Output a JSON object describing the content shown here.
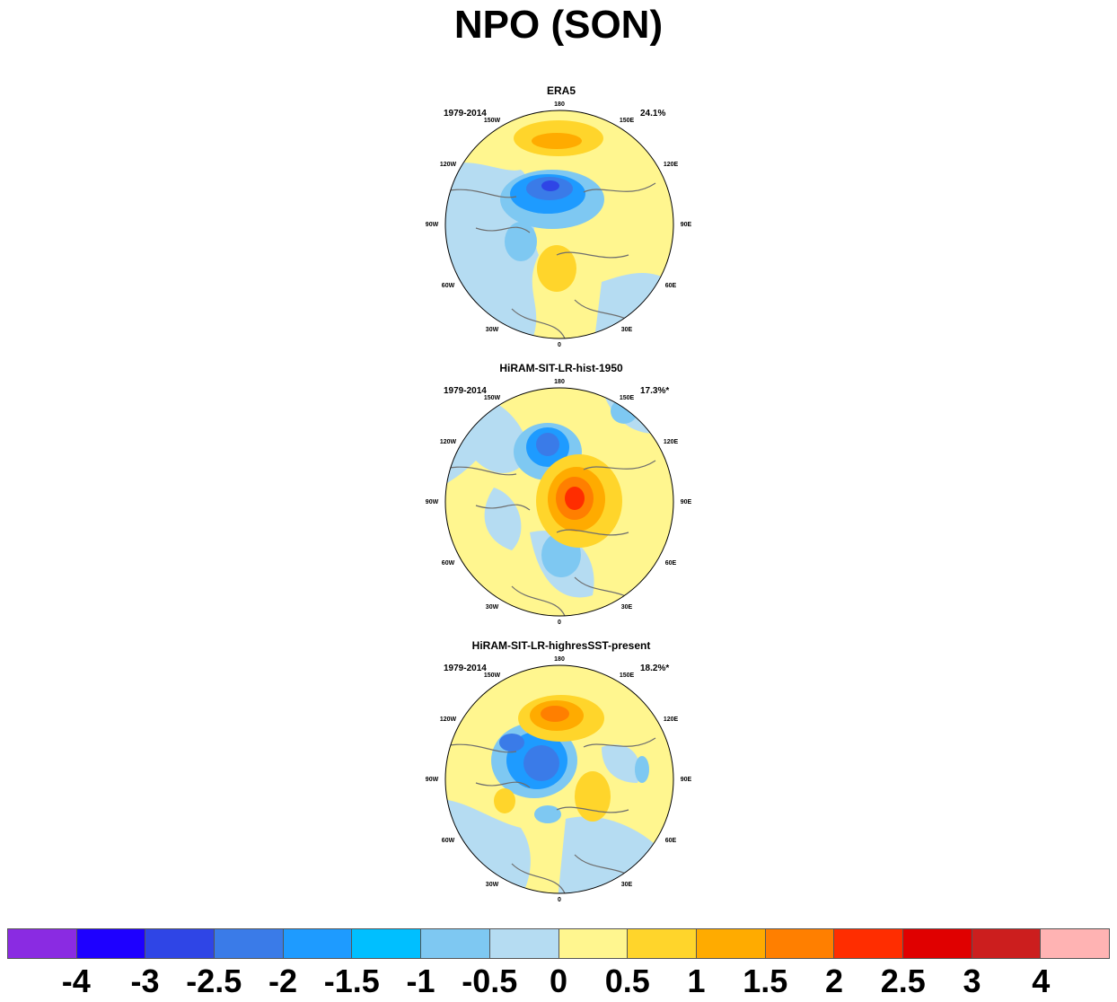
{
  "title": "NPO (SON)",
  "panels": [
    {
      "title": "ERA5",
      "period": "1979-2014",
      "variance": "24.1%"
    },
    {
      "title": "HiRAM-SIT-LR-hist-1950",
      "period": "1979-2014",
      "variance": "17.3%*"
    },
    {
      "title": "HiRAM-SIT-LR-highresSST-present",
      "period": "1979-2014",
      "variance": "18.2%*"
    }
  ],
  "longitude_labels": [
    "180",
    "150E",
    "120E",
    "90E",
    "60E",
    "30E",
    "0",
    "30W",
    "60W",
    "90W",
    "120W",
    "150W"
  ],
  "colorbar": {
    "colors": [
      "#8a2be2",
      "#1e00ff",
      "#2f45e6",
      "#3a7be8",
      "#1e9bff",
      "#00bfff",
      "#7ec8f2",
      "#b5dcf2",
      "#fff68f",
      "#ffd52b",
      "#ffab00",
      "#ff7f00",
      "#ff2d00",
      "#e00000",
      "#cc1e1e",
      "#ffb3b3"
    ],
    "labels": [
      "-4",
      "-3",
      "-2.5",
      "-2",
      "-1.5",
      "-1",
      "-0.5",
      "0",
      "0.5",
      "1",
      "1.5",
      "2",
      "2.5",
      "3",
      "4"
    ]
  }
}
